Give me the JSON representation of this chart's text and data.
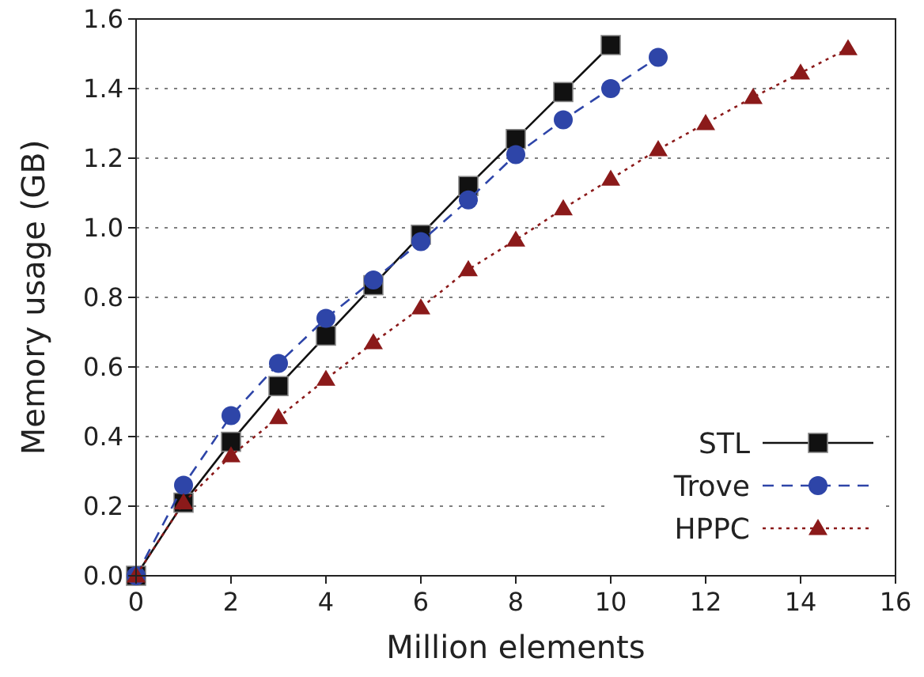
{
  "chart_data": {
    "type": "line",
    "xlabel": "Million elements",
    "ylabel": "Memory usage (GB)",
    "xlim": [
      0,
      16
    ],
    "xticks": [
      0,
      2,
      4,
      6,
      8,
      10,
      12,
      14,
      16
    ],
    "ylim": [
      0,
      1.6
    ],
    "yticks": [
      {
        "value": 0,
        "label": "0.0"
      },
      0.2,
      0.4,
      0.6,
      0.8,
      {
        "value": 1,
        "label": "1.0"
      },
      1.2,
      1.4,
      1.6
    ],
    "grid": "y",
    "legend": "bottom right",
    "series": [
      {
        "name": "STL",
        "color": "#111111",
        "marker": "square",
        "line_style": "solid",
        "x": [
          0,
          1,
          2,
          3,
          4,
          5,
          6,
          7,
          8,
          9,
          10
        ],
        "values": [
          0,
          0.21,
          0.385,
          0.545,
          0.69,
          0.835,
          0.98,
          1.12,
          1.255,
          1.39,
          1.525
        ]
      },
      {
        "name": "Trove",
        "color": "#2e45a8",
        "marker": "circle",
        "line_style": "dashed",
        "x": [
          0,
          1,
          2,
          3,
          4,
          5,
          6,
          7,
          8,
          9,
          10,
          11
        ],
        "values": [
          0,
          0.26,
          0.46,
          0.61,
          0.74,
          0.85,
          0.96,
          1.08,
          1.21,
          1.31,
          1.4,
          1.49
        ]
      },
      {
        "name": "HPPC",
        "color": "#8b1a1a",
        "marker": "triangle",
        "line_style": "dotted",
        "x": [
          0,
          1,
          2,
          3,
          4,
          5,
          6,
          7,
          8,
          9,
          10,
          11,
          12,
          13,
          14,
          15
        ],
        "values": [
          0,
          0.21,
          0.345,
          0.455,
          0.565,
          0.67,
          0.77,
          0.88,
          0.965,
          1.055,
          1.14,
          1.225,
          1.3,
          1.375,
          1.445,
          1.515
        ]
      }
    ]
  }
}
